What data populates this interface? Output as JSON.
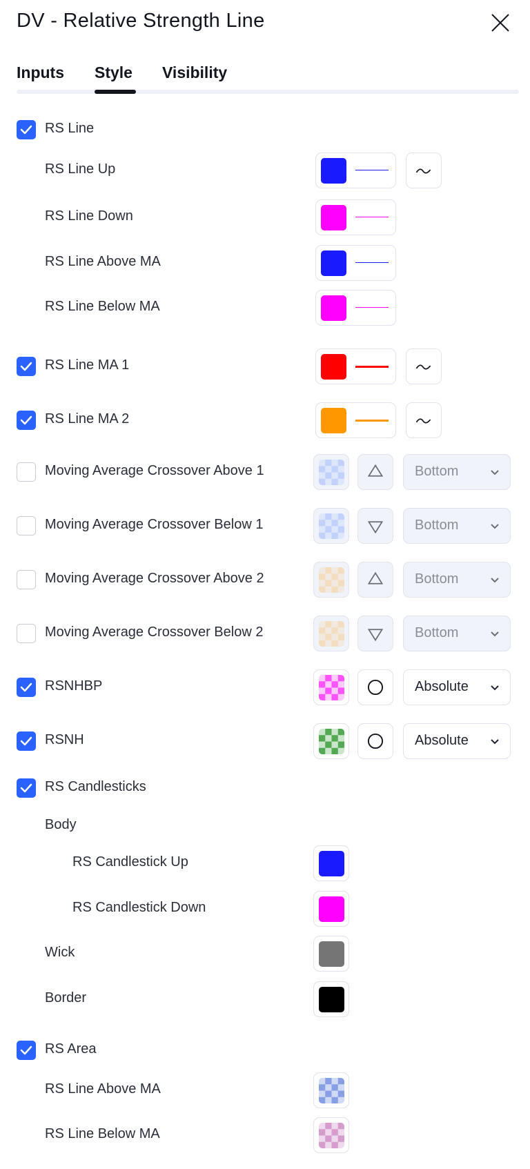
{
  "dialog": {
    "title": "DV - Relative Strength Line"
  },
  "tabs": [
    {
      "label": "Inputs",
      "active": false
    },
    {
      "label": "Style",
      "active": true
    },
    {
      "label": "Visibility",
      "active": false
    }
  ],
  "colors": {
    "accent": "#2962ff",
    "blue": "#1a1aff",
    "magenta": "#ff00ff",
    "red": "#ff0000",
    "orange": "#ff9800",
    "gray": "#757575",
    "black": "#000000"
  },
  "rows": {
    "rs_line": {
      "label": "RS Line",
      "checked": true
    },
    "rs_line_up": {
      "label": "RS Line Up",
      "color": "#1a1aff",
      "icon": "line-style-icon"
    },
    "rs_line_down": {
      "label": "RS Line Down",
      "color": "#ff00ff"
    },
    "rs_line_above_ma": {
      "label": "RS Line Above MA",
      "color": "#1a1aff"
    },
    "rs_line_below_ma": {
      "label": "RS Line Below MA",
      "color": "#ff00ff"
    },
    "ma1": {
      "label": "RS Line MA 1",
      "checked": true,
      "color": "#ff0000",
      "icon": "line-style-icon"
    },
    "ma2": {
      "label": "RS Line MA 2",
      "checked": true,
      "color": "#ff9800",
      "icon": "line-style-icon"
    },
    "cross_above_1": {
      "label": "Moving Average Crossover Above 1",
      "checked": false,
      "color": "#2962ff",
      "shape": "triangle-up-icon",
      "location": "Bottom"
    },
    "cross_below_1": {
      "label": "Moving Average Crossover Below 1",
      "checked": false,
      "color": "#2962ff",
      "shape": "triangle-down-icon",
      "location": "Bottom"
    },
    "cross_above_2": {
      "label": "Moving Average Crossover Above 2",
      "checked": false,
      "color": "#ff9800",
      "shape": "triangle-up-icon",
      "location": "Bottom"
    },
    "cross_below_2": {
      "label": "Moving Average Crossover Below 2",
      "checked": false,
      "color": "#ff9800",
      "shape": "triangle-down-icon",
      "location": "Bottom"
    },
    "rsnhbp": {
      "label": "RSNHBP",
      "checked": true,
      "color": "#ff00ff",
      "shape": "circle-icon",
      "location": "Absolute"
    },
    "rsnh": {
      "label": "RSNH",
      "checked": true,
      "color": "#008000",
      "shape": "circle-icon",
      "location": "Absolute"
    },
    "rs_candlesticks": {
      "label": "RS Candlesticks",
      "checked": true
    },
    "body": {
      "label": "Body"
    },
    "candle_up": {
      "label": "RS Candlestick Up",
      "color": "#1a1aff"
    },
    "candle_down": {
      "label": "RS Candlestick Down",
      "color": "#ff00ff"
    },
    "wick": {
      "label": "Wick",
      "color": "#757575"
    },
    "border": {
      "label": "Border",
      "color": "#000000"
    },
    "rs_area": {
      "label": "RS Area",
      "checked": true
    },
    "area_above": {
      "label": "RS Line Above MA",
      "color": "#1848cc"
    },
    "area_below": {
      "label": "RS Line Below MA",
      "color": "#b040a0"
    }
  }
}
